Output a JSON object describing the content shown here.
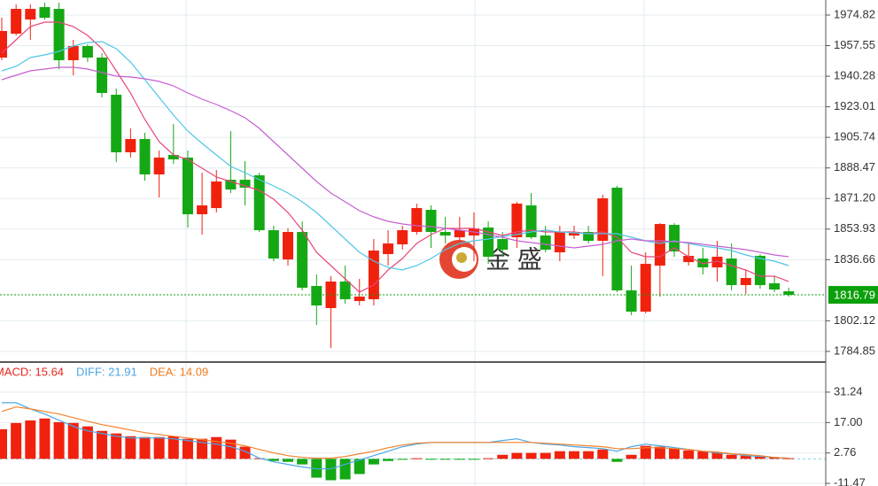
{
  "watermark": "金 盛",
  "chart_data": [
    {
      "type": "candlestick",
      "open": [
        1950.8,
        1964.3,
        1972.3,
        1979.3,
        1978.3,
        1949.3,
        1957.3,
        1950.8,
        1929.8,
        1897.3,
        1904.8,
        1884.8,
        1895.8,
        1894.3,
        1862.3,
        1865.8,
        1881.8,
        1881.8,
        1884.3,
        1853.3,
        1836.8,
        1852.3,
        1821.8,
        1809.3,
        1824.3,
        1813.3,
        1814.3,
        1839.8,
        1845.3,
        1852.3,
        1864.8,
        1852.3,
        1849.3,
        1850.3,
        1854.8,
        1848.3,
        1849.3,
        1867.3,
        1850.3,
        1840.8,
        1850.3,
        1852.3,
        1847.3,
        1877.3,
        1819.3,
        1807.3,
        1833.3,
        1856.3,
        1835.3,
        1837.3,
        1832.3,
        1837.3,
        1822.3,
        1838.8,
        1823.3,
        1818.8
      ],
      "high": [
        1973.3,
        1980.8,
        1980.8,
        1981.8,
        1981.8,
        1960.8,
        1958.3,
        1953.3,
        1933.3,
        1910.8,
        1908.3,
        1898.3,
        1913.3,
        1898.3,
        1885.8,
        1887.3,
        1909.3,
        1892.3,
        1885.8,
        1855.8,
        1854.3,
        1858.3,
        1828.3,
        1827.3,
        1833.3,
        1825.8,
        1848.3,
        1853.3,
        1855.8,
        1868.3,
        1867.3,
        1860.8,
        1860.8,
        1863.3,
        1858.3,
        1852.3,
        1869.3,
        1874.3,
        1855.8,
        1855.8,
        1855.8,
        1855.8,
        1873.3,
        1878.3,
        1833.3,
        1840.8,
        1857.3,
        1857.3,
        1845.8,
        1843.3,
        1847.3,
        1845.8,
        1830.8,
        1839.8,
        1827.3,
        1820.8
      ],
      "low": [
        1949.3,
        1963.3,
        1960.8,
        1972.3,
        1944.3,
        1940.8,
        1948.3,
        1928.3,
        1891.8,
        1894.3,
        1881.3,
        1871.8,
        1890.8,
        1854.8,
        1850.8,
        1863.3,
        1874.3,
        1867.3,
        1852.3,
        1835.8,
        1833.3,
        1819.3,
        1799.8,
        1786.8,
        1811.8,
        1810.8,
        1810.8,
        1833.3,
        1842.3,
        1850.8,
        1843.3,
        1845.8,
        1843.3,
        1835.8,
        1834.3,
        1838.3,
        1843.3,
        1848.3,
        1840.8,
        1835.8,
        1848.3,
        1845.8,
        1827.3,
        1818.3,
        1805.3,
        1806.3,
        1815.8,
        1838.3,
        1833.3,
        1828.3,
        1824.3,
        1819.3,
        1817.3,
        1820.3,
        1818.3,
        1815.8
      ],
      "close": [
        1965.8,
        1978.3,
        1978.3,
        1973.3,
        1949.3,
        1957.3,
        1950.8,
        1930.8,
        1897.3,
        1904.8,
        1884.8,
        1894.3,
        1893.3,
        1862.3,
        1867.3,
        1880.8,
        1876.3,
        1877.3,
        1853.3,
        1837.3,
        1852.3,
        1820.8,
        1810.8,
        1824.3,
        1814.3,
        1815.8,
        1841.8,
        1845.8,
        1853.3,
        1865.8,
        1852.3,
        1850.3,
        1853.3,
        1854.3,
        1838.3,
        1842.3,
        1868.3,
        1849.3,
        1842.3,
        1852.3,
        1852.3,
        1847.3,
        1871.3,
        1819.3,
        1807.3,
        1834.3,
        1856.8,
        1841.3,
        1838.8,
        1832.3,
        1838.3,
        1822.3,
        1826.3,
        1822.3,
        1819.8,
        1816.8
      ],
      "up_color": "#f0220e",
      "down_color": "#14a814",
      "series": [
        {
          "color": "#e8457a",
          "values": [
            1953.3,
            1960.8,
            1968.3,
            1970.8,
            1970.8,
            1968.3,
            1963.3,
            1955.8,
            1943.3,
            1930.8,
            1915.8,
            1903.3,
            1895.8,
            1893.3,
            1888.3,
            1883.3,
            1880.8,
            1878.3,
            1875.8,
            1870.8,
            1863.3,
            1853.3,
            1840.8,
            1833.3,
            1825.8,
            1818.3,
            1822.3,
            1830.8,
            1837.3,
            1845.8,
            1850.8,
            1854.3,
            1854.3,
            1854.3,
            1852.3,
            1850.3,
            1852.3,
            1853.3,
            1852.3,
            1852.3,
            1852.3,
            1851.3,
            1852.3,
            1849.3,
            1840.8,
            1838.3,
            1838.3,
            1843.3,
            1838.3,
            1834.3,
            1835.8,
            1833.3,
            1830.8,
            1827.3,
            1827.3,
            1824.3
          ]
        },
        {
          "color": "#4fc6e6",
          "values": [
            1943.3,
            1945.8,
            1950.8,
            1952.3,
            1954.3,
            1957.3,
            1959.3,
            1959.8,
            1955.8,
            1948.3,
            1938.3,
            1928.3,
            1918.3,
            1909.3,
            1902.3,
            1895.8,
            1889.3,
            1885.8,
            1881.8,
            1878.3,
            1874.3,
            1869.3,
            1863.3,
            1855.8,
            1848.3,
            1840.8,
            1835.8,
            1832.3,
            1830.8,
            1833.3,
            1837.3,
            1842.3,
            1845.8,
            1847.3,
            1848.3,
            1849.8,
            1850.8,
            1852.3,
            1853.3,
            1852.3,
            1851.8,
            1851.3,
            1851.3,
            1851.3,
            1849.3,
            1847.3,
            1845.8,
            1847.3,
            1845.8,
            1844.3,
            1843.3,
            1841.8,
            1839.3,
            1837.3,
            1835.8,
            1833.3
          ]
        },
        {
          "color": "#c65fd0",
          "values": [
            1938.3,
            1940.8,
            1943.3,
            1944.3,
            1945.3,
            1945.3,
            1944.3,
            1942.3,
            1940.3,
            1939.8,
            1938.8,
            1937.3,
            1934.8,
            1930.8,
            1927.3,
            1924.3,
            1920.8,
            1916.8,
            1910.8,
            1903.3,
            1895.8,
            1888.3,
            1880.8,
            1874.3,
            1869.3,
            1864.3,
            1860.8,
            1858.3,
            1856.8,
            1855.8,
            1855.3,
            1854.3,
            1853.3,
            1852.3,
            1850.8,
            1849.3,
            1847.3,
            1846.3,
            1845.3,
            1844.3,
            1843.3,
            1844.3,
            1845.3,
            1847.3,
            1848.3,
            1847.3,
            1847.3,
            1846.8,
            1846.3,
            1845.3,
            1844.3,
            1843.3,
            1842.3,
            1840.8,
            1839.3,
            1838.3
          ]
        }
      ],
      "ylim": [
        1779.32,
        1983.32
      ],
      "yticks": [
        1974.82,
        1957.55,
        1940.28,
        1923.01,
        1905.74,
        1888.47,
        {
          "value": 1871.2,
          "label": "1871.20"
        },
        1853.93,
        1836.66,
        1802.12,
        1784.85
      ],
      "grid": true,
      "current_price": 1816.79,
      "current_price_color": "#0aa00a"
    },
    {
      "type": "macd",
      "legend": [
        {
          "label": "MACD: 15.64",
          "color": "#e8251c"
        },
        {
          "label": "DIFF: 21.91",
          "color": "#4aa7e6"
        },
        {
          "label": "DEA: 14.09",
          "color": "#f07a20"
        }
      ],
      "values": [
        13.9,
        16.8,
        18.0,
        18.9,
        17.2,
        16.8,
        15.2,
        13.1,
        11.9,
        10.6,
        10.2,
        10.2,
        10.6,
        9.4,
        9.4,
        10.2,
        9.0,
        5.7,
        0.3,
        -1.0,
        -1.4,
        -2.6,
        -8.8,
        -10.0,
        -9.6,
        -7.1,
        -2.6,
        -1.0,
        -0.1,
        0.3,
        -0.1,
        -0.1,
        -0.1,
        -0.1,
        0.3,
        1.9,
        2.8,
        2.8,
        2.8,
        3.6,
        3.6,
        3.6,
        4.4,
        -1.4,
        1.9,
        6.1,
        5.7,
        4.8,
        4.0,
        3.6,
        3.1,
        1.9,
        1.5,
        1.1,
        0.7,
        0.3
      ],
      "up_color": "#f0220e",
      "down_color": "#14a814",
      "series": [
        {
          "color": "#4aa7e6",
          "values": [
            26.3,
            26.3,
            23.4,
            21.0,
            18.1,
            15.2,
            13.1,
            11.9,
            10.6,
            9.8,
            9.8,
            9.8,
            9.4,
            8.6,
            7.7,
            6.9,
            5.7,
            3.6,
            0.3,
            -1.4,
            -2.6,
            -3.8,
            -4.7,
            -4.7,
            -2.6,
            -0.5,
            1.5,
            3.6,
            5.7,
            6.9,
            7.7,
            7.7,
            7.7,
            7.7,
            7.7,
            8.6,
            9.4,
            7.7,
            6.9,
            6.5,
            5.7,
            5.3,
            4.8,
            3.6,
            5.7,
            6.9,
            6.1,
            5.3,
            4.4,
            3.6,
            2.8,
            2.3,
            1.5,
            1.1,
            0.7,
            0.3
          ]
        },
        {
          "color": "#f5812a",
          "values": [
            22.2,
            24.3,
            23.4,
            22.2,
            21.0,
            19.3,
            17.6,
            16.0,
            14.8,
            13.5,
            12.3,
            11.4,
            10.6,
            9.8,
            9.0,
            8.1,
            7.3,
            6.1,
            4.4,
            2.8,
            1.5,
            0.7,
            0.3,
            0.3,
            1.1,
            2.4,
            3.6,
            5.2,
            6.5,
            7.3,
            7.7,
            7.7,
            7.7,
            7.7,
            7.7,
            7.7,
            7.7,
            7.7,
            7.3,
            6.9,
            6.5,
            6.1,
            5.7,
            4.8,
            4.8,
            5.2,
            5.2,
            4.8,
            4.4,
            3.6,
            3.2,
            2.4,
            2.0,
            1.5,
            0.7,
            0.3
          ]
        }
      ],
      "ylim": [
        -12.7,
        44.9
      ],
      "yticks": [
        31.24,
        {
          "value": 17,
          "label": "17.00"
        },
        2.76,
        -11.47
      ]
    }
  ]
}
